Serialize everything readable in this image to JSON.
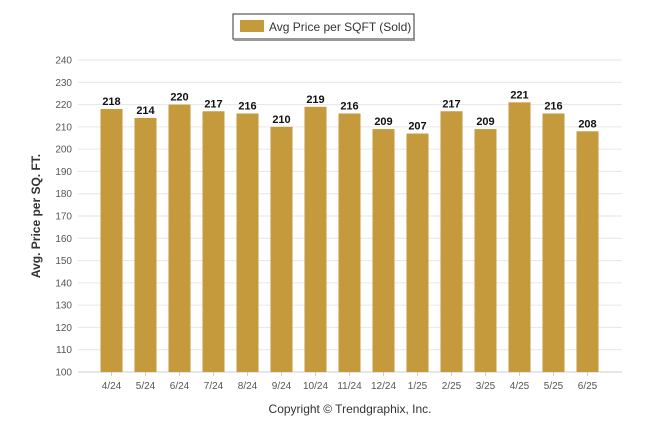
{
  "chart_data": {
    "type": "bar",
    "title": "",
    "xlabel": "",
    "ylabel": "Avg. Price per SQ. FT.",
    "categories": [
      "4/24",
      "5/24",
      "6/24",
      "7/24",
      "8/24",
      "9/24",
      "10/24",
      "11/24",
      "12/24",
      "1/25",
      "2/25",
      "3/25",
      "4/25",
      "5/25",
      "6/25"
    ],
    "series": [
      {
        "name": "Avg Price per SQFT (Sold)",
        "values": [
          218,
          214,
          220,
          217,
          216,
          210,
          219,
          216,
          209,
          207,
          217,
          209,
          221,
          216,
          208
        ]
      }
    ],
    "ylim": [
      100,
      240
    ],
    "yticks": [
      100,
      110,
      120,
      130,
      140,
      150,
      160,
      170,
      180,
      190,
      200,
      210,
      220,
      230,
      240
    ],
    "grid": true,
    "legend_position": "top-center",
    "bar_color": "#C49A3C"
  },
  "copyright": "Copyright © Trendgraphix, Inc."
}
